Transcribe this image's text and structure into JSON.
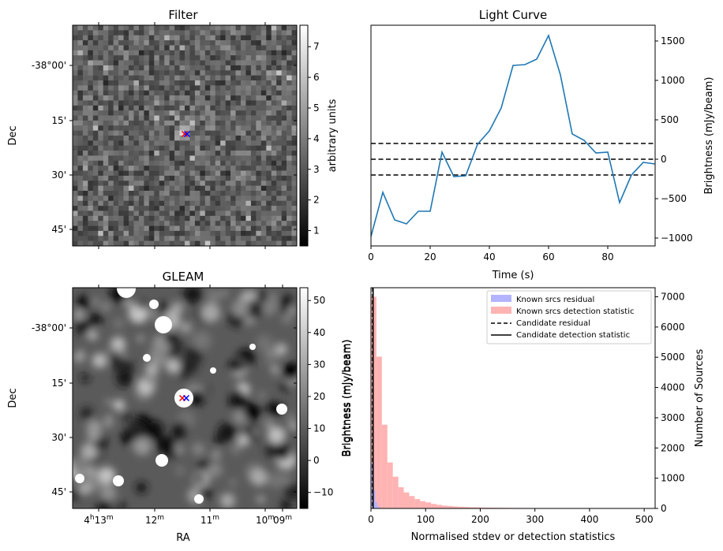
{
  "panels": {
    "filter": {
      "title": "Filter",
      "ylabel": "Dec",
      "dec_ticks": [
        "-38°00'",
        "15'",
        "30'",
        "45'"
      ],
      "colorbar": {
        "label": "arbitrary units",
        "ticks": [
          "1",
          "2",
          "3",
          "4",
          "5",
          "6",
          "7"
        ],
        "vmin": 0.5,
        "vmax": 7.7
      }
    },
    "gleam": {
      "title": "GLEAM",
      "ylabel": "Dec",
      "xlabel": "RA",
      "dec_ticks": [
        "-38°00'",
        "15'",
        "30'",
        "45'"
      ],
      "ra_ticks": [
        {
          "h": "4",
          "m": "13"
        },
        {
          "h": "",
          "m": "12"
        },
        {
          "h": "",
          "m": "11"
        },
        {
          "h": "",
          "m": "10"
        },
        {
          "h": "",
          "m": "09"
        }
      ],
      "ra_sup_h": "h",
      "ra_sup_m": "m",
      "colorbar": {
        "label": "Brightness (mJy/beam)",
        "ticks": [
          "−10",
          "0",
          "10",
          "20",
          "30",
          "40",
          "50"
        ],
        "vmin": -15,
        "vmax": 54
      }
    },
    "light_curve": {
      "title": "Light Curve",
      "xlabel": "Time (s)",
      "ylabel": "Brightness (mJy/beam)"
    },
    "histogram": {
      "xlabel": "Normalised stdev or detection statistics",
      "ylabel_left": "Brightness (mJy/beam)",
      "ylabel_right": "Number of Sources",
      "legend": [
        "Known srcs residual",
        "Known srcs detection statistic",
        "Candidate residual",
        "Candidate detection statistic"
      ]
    }
  },
  "colors": {
    "line": "#1f77b4",
    "residual_hist": "#b3b3ff",
    "detection_hist": "#ffb3b3",
    "marker_red": "#ff0000",
    "marker_blue": "#0000ff"
  },
  "chart_data": [
    {
      "type": "heatmap",
      "title": "Filter",
      "colormap": "gray",
      "description_value": "noise image with bright central pixel at candidate position",
      "source_position": "center"
    },
    {
      "type": "line",
      "title": "Light Curve",
      "xlabel": "Time (s)",
      "ylabel": "Brightness (mJy/beam)",
      "xlim": [
        0,
        96
      ],
      "ylim": [
        -1100,
        1700
      ],
      "x_ticks": [
        0,
        20,
        40,
        60,
        80
      ],
      "y_ticks": [
        -1000,
        -500,
        0,
        500,
        1000,
        1500
      ],
      "series": [
        {
          "x": [
            0,
            4,
            8,
            12,
            16,
            20,
            24,
            28,
            32,
            36,
            40,
            44,
            48,
            52,
            56,
            60,
            64,
            68,
            72,
            76,
            80,
            84,
            88,
            92,
            96
          ],
          "values": [
            -980,
            -420,
            -770,
            -820,
            -660,
            -660,
            90,
            -220,
            -210,
            190,
            360,
            650,
            1190,
            1200,
            1270,
            1570,
            1070,
            320,
            240,
            80,
            90,
            -550,
            -200,
            -40,
            -60
          ]
        }
      ],
      "hlines": [
        -200,
        0,
        200
      ]
    },
    {
      "type": "heatmap",
      "title": "GLEAM",
      "colormap": "gray",
      "xlabel": "RA",
      "ylabel": "Dec"
    },
    {
      "type": "bar",
      "xlabel": "Normalised stdev or detection statistics",
      "ylabel": "Number of Sources",
      "xlim": [
        0,
        520
      ],
      "ylim": [
        0,
        7300
      ],
      "x_ticks": [
        0,
        100,
        200,
        300,
        400,
        500
      ],
      "y_ticks": [
        0,
        1000,
        2000,
        3000,
        4000,
        5000,
        6000,
        7000
      ],
      "bin_width": 10,
      "series": [
        {
          "name": "Known srcs detection statistic",
          "bins_start": [
            0,
            10,
            20,
            30,
            40,
            50,
            60,
            70,
            80,
            90,
            100,
            110,
            120,
            130,
            140,
            150,
            160,
            170,
            180,
            190,
            200,
            210,
            220,
            230,
            240,
            250,
            260,
            270,
            280,
            290,
            300,
            310,
            320,
            330,
            340,
            350,
            360,
            370,
            380,
            390,
            400,
            410,
            420,
            430,
            440,
            450,
            460,
            470,
            480,
            490
          ],
          "values": [
            7000,
            5020,
            2770,
            1520,
            1050,
            700,
            530,
            410,
            310,
            240,
            200,
            150,
            120,
            95,
            80,
            65,
            55,
            48,
            40,
            35,
            30,
            28,
            25,
            22,
            20,
            18,
            16,
            15,
            14,
            13,
            12,
            11,
            10,
            9,
            9,
            8,
            8,
            7,
            7,
            6,
            6,
            5,
            5,
            4,
            4,
            3,
            3,
            3,
            3,
            3
          ]
        },
        {
          "name": "Known srcs residual",
          "bins_start": [
            0,
            4,
            8,
            12
          ],
          "values": [
            1500,
            600,
            200,
            60
          ]
        }
      ],
      "vlines": [
        {
          "name": "Candidate residual",
          "x": 3
        },
        {
          "name": "Candidate detection statistic",
          "x": 4
        }
      ]
    }
  ]
}
